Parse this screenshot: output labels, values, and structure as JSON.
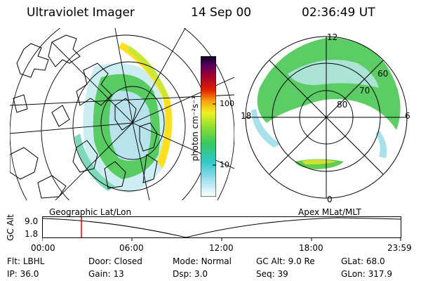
{
  "header": {
    "title": "Ultraviolet Imager",
    "date": "14 Sep 00",
    "time": "02:36:49 UT"
  },
  "colorbar": {
    "unit_label": "photon cm⁻²s⁻¹",
    "tick_100": "100",
    "tick_10": "10"
  },
  "polar_plot": {
    "lat_labels": [
      "60",
      "70",
      "80"
    ],
    "mlt_labels": {
      "top": "12",
      "left": "18",
      "right": "6",
      "bottom": "0"
    }
  },
  "panel_labels": {
    "left": "Geographic Lat/Lon",
    "right": "Apex MLat/MLT"
  },
  "altitude_plot": {
    "ylabel": "GC Alt",
    "ytick_top": "9.0",
    "ytick_bottom": "1.8",
    "x_ticks": [
      "00:00",
      "06:00",
      "12:00",
      "18:00",
      "23:59"
    ],
    "marker_color": "#e00000"
  },
  "status": {
    "row1": [
      {
        "label": "Flt:",
        "value": "LBHL"
      },
      {
        "label": "Door:",
        "value": "Closed"
      },
      {
        "label": "Mode:",
        "value": "Normal"
      },
      {
        "label": "GC Alt:",
        "value": "9.0 Re"
      },
      {
        "label": "GLat:",
        "value": "68.0"
      }
    ],
    "row2": [
      {
        "label": "IP:",
        "value": "36.0"
      },
      {
        "label": "Gain:",
        "value": "13"
      },
      {
        "label": "Dsp:",
        "value": "3.0"
      },
      {
        "label": "Seq:",
        "value": "39"
      },
      {
        "label": "GLon:",
        "value": "317.9"
      }
    ]
  }
}
